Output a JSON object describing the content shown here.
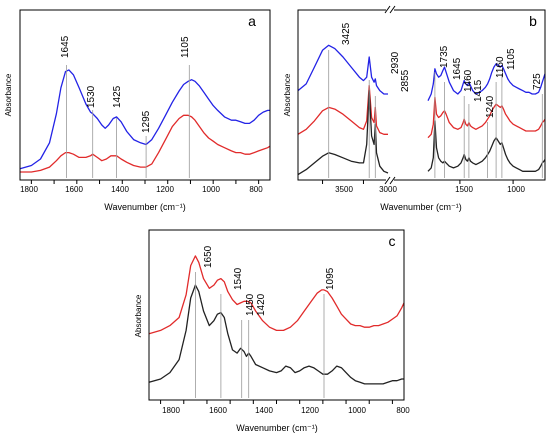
{
  "colors": {
    "blue": "#2323e6",
    "red": "#e12b2b",
    "black": "#222222",
    "peak_line": "#9a9a9a"
  },
  "chart_data": [
    {
      "panel": "a",
      "type": "line",
      "xlabel": "Wavenumber (cm⁻¹)",
      "ylabel": "Absorbance",
      "xlim": [
        1850,
        750
      ],
      "x_reversed": true,
      "x_ticks": [
        "1800",
        "1600",
        "1400",
        "1200",
        "1000",
        "800"
      ],
      "peak_labels": [
        "1645",
        "1530",
        "1425",
        "1295",
        "1105"
      ],
      "series": [
        {
          "color": "blue",
          "x": [
            1850,
            1800,
            1760,
            1720,
            1690,
            1670,
            1650,
            1635,
            1615,
            1590,
            1560,
            1540,
            1530,
            1510,
            1490,
            1475,
            1460,
            1440,
            1425,
            1405,
            1380,
            1350,
            1320,
            1295,
            1270,
            1240,
            1210,
            1180,
            1150,
            1130,
            1110,
            1095,
            1080,
            1060,
            1040,
            1020,
            1000,
            980,
            950,
            920,
            900,
            880,
            860,
            840,
            820,
            800,
            780,
            760,
            750
          ],
          "y": [
            0.02,
            0.04,
            0.08,
            0.18,
            0.36,
            0.52,
            0.62,
            0.63,
            0.6,
            0.52,
            0.42,
            0.37,
            0.36,
            0.33,
            0.29,
            0.27,
            0.29,
            0.33,
            0.34,
            0.31,
            0.25,
            0.2,
            0.18,
            0.17,
            0.2,
            0.27,
            0.35,
            0.43,
            0.5,
            0.54,
            0.56,
            0.57,
            0.56,
            0.53,
            0.49,
            0.45,
            0.41,
            0.38,
            0.34,
            0.32,
            0.32,
            0.31,
            0.3,
            0.3,
            0.32,
            0.35,
            0.37,
            0.38,
            0.38
          ]
        },
        {
          "color": "red",
          "x": [
            1850,
            1800,
            1760,
            1720,
            1690,
            1670,
            1650,
            1635,
            1615,
            1590,
            1560,
            1540,
            1530,
            1510,
            1490,
            1470,
            1450,
            1425,
            1405,
            1380,
            1350,
            1320,
            1295,
            1270,
            1240,
            1210,
            1180,
            1150,
            1130,
            1110,
            1095,
            1080,
            1060,
            1040,
            1020,
            1000,
            980,
            950,
            920,
            900,
            880,
            860,
            840,
            820,
            800,
            780,
            760,
            750
          ],
          "y": [
            0.0,
            0.0,
            0.01,
            0.03,
            0.07,
            0.1,
            0.12,
            0.12,
            0.11,
            0.09,
            0.09,
            0.1,
            0.11,
            0.09,
            0.07,
            0.08,
            0.1,
            0.1,
            0.08,
            0.06,
            0.04,
            0.03,
            0.03,
            0.05,
            0.12,
            0.2,
            0.28,
            0.33,
            0.35,
            0.35,
            0.34,
            0.32,
            0.28,
            0.24,
            0.21,
            0.19,
            0.17,
            0.15,
            0.13,
            0.12,
            0.12,
            0.11,
            0.11,
            0.12,
            0.13,
            0.14,
            0.15,
            0.16
          ]
        }
      ]
    },
    {
      "panel": "b",
      "type": "line",
      "xlabel": "Wavenumber (cm⁻¹)",
      "ylabel": "Absorbance",
      "broken_axis": true,
      "xlim_left": [
        3800,
        2700
      ],
      "xlim_right": [
        1800,
        700
      ],
      "x_reversed": true,
      "x_ticks": [
        "3500",
        "3000",
        "1500",
        "1000"
      ],
      "peak_labels": [
        "3425",
        "2930",
        "2855",
        "1735",
        "1645",
        "1460",
        "1415",
        "1240",
        "1160",
        "1105",
        "725"
      ],
      "series": [
        {
          "color": "blue",
          "left": {
            "x": [
              3800,
              3700,
              3600,
              3500,
              3425,
              3350,
              3250,
              3150,
              3050,
              3000,
              2960,
              2930,
              2900,
              2870,
              2855,
              2840,
              2800,
              2750,
              2700
            ],
            "y": [
              0.52,
              0.56,
              0.66,
              0.76,
              0.79,
              0.77,
              0.72,
              0.66,
              0.6,
              0.58,
              0.6,
              0.72,
              0.6,
              0.57,
              0.59,
              0.55,
              0.52,
              0.5,
              0.5
            ]
          },
          "right": {
            "x": [
              1800,
              1770,
              1750,
              1735,
              1720,
              1700,
              1680,
              1660,
              1645,
              1630,
              1600,
              1560,
              1520,
              1490,
              1470,
              1460,
              1445,
              1430,
              1415,
              1400,
              1380,
              1350,
              1320,
              1290,
              1260,
              1240,
              1220,
              1200,
              1180,
              1160,
              1140,
              1120,
              1105,
              1090,
              1070,
              1050,
              1030,
              1000,
              970,
              940,
              910,
              880,
              850,
              820,
              790,
              760,
              740,
              725,
              710,
              700
            ],
            "y": [
              0.46,
              0.5,
              0.56,
              0.65,
              0.62,
              0.6,
              0.61,
              0.64,
              0.66,
              0.63,
              0.57,
              0.52,
              0.5,
              0.52,
              0.56,
              0.58,
              0.56,
              0.55,
              0.57,
              0.55,
              0.52,
              0.5,
              0.51,
              0.52,
              0.54,
              0.56,
              0.59,
              0.63,
              0.66,
              0.68,
              0.67,
              0.66,
              0.67,
              0.65,
              0.62,
              0.59,
              0.57,
              0.55,
              0.54,
              0.53,
              0.52,
              0.51,
              0.51,
              0.5,
              0.5,
              0.51,
              0.54,
              0.57,
              0.6,
              0.62
            ]
          }
        },
        {
          "color": "red",
          "left": {
            "x": [
              3800,
              3700,
              3600,
              3500,
              3425,
              3350,
              3250,
              3150,
              3050,
              3000,
              2960,
              2930,
              2900,
              2870,
              2855,
              2840,
              2800,
              2750,
              2700
            ],
            "y": [
              0.26,
              0.29,
              0.34,
              0.4,
              0.42,
              0.41,
              0.38,
              0.34,
              0.3,
              0.29,
              0.34,
              0.55,
              0.36,
              0.33,
              0.42,
              0.31,
              0.27,
              0.26,
              0.26
            ]
          },
          "right": {
            "x": [
              1800,
              1770,
              1750,
              1735,
              1720,
              1700,
              1680,
              1660,
              1645,
              1630,
              1600,
              1560,
              1520,
              1490,
              1470,
              1460,
              1445,
              1430,
              1415,
              1400,
              1380,
              1350,
              1320,
              1290,
              1260,
              1240,
              1220,
              1200,
              1180,
              1160,
              1140,
              1120,
              1105,
              1090,
              1070,
              1050,
              1030,
              1000,
              970,
              940,
              910,
              880,
              850,
              820,
              790,
              760,
              740,
              725,
              710,
              700
            ],
            "y": [
              0.24,
              0.26,
              0.32,
              0.48,
              0.38,
              0.36,
              0.37,
              0.39,
              0.4,
              0.38,
              0.33,
              0.3,
              0.29,
              0.3,
              0.33,
              0.35,
              0.32,
              0.31,
              0.33,
              0.31,
              0.3,
              0.29,
              0.3,
              0.31,
              0.33,
              0.35,
              0.37,
              0.4,
              0.42,
              0.44,
              0.43,
              0.42,
              0.43,
              0.41,
              0.38,
              0.36,
              0.34,
              0.32,
              0.31,
              0.3,
              0.29,
              0.28,
              0.28,
              0.28,
              0.28,
              0.29,
              0.31,
              0.33,
              0.34,
              0.35
            ]
          }
        },
        {
          "color": "black",
          "left": {
            "x": [
              3800,
              3700,
              3600,
              3500,
              3425,
              3350,
              3250,
              3150,
              3050,
              3000,
              2960,
              2930,
              2900,
              2870,
              2855,
              2840,
              2800,
              2750,
              2700
            ],
            "y": [
              0.02,
              0.05,
              0.09,
              0.13,
              0.15,
              0.14,
              0.12,
              0.1,
              0.09,
              0.09,
              0.2,
              0.52,
              0.25,
              0.2,
              0.32,
              0.15,
              0.07,
              0.04,
              0.03
            ]
          },
          "right": {
            "x": [
              1800,
              1770,
              1750,
              1735,
              1720,
              1700,
              1680,
              1660,
              1645,
              1630,
              1600,
              1560,
              1520,
              1490,
              1470,
              1460,
              1445,
              1430,
              1415,
              1400,
              1380,
              1350,
              1320,
              1290,
              1260,
              1240,
              1220,
              1200,
              1180,
              1160,
              1140,
              1120,
              1105,
              1090,
              1070,
              1050,
              1030,
              1000,
              970,
              940,
              910,
              880,
              850,
              820,
              790,
              760,
              740,
              725,
              710,
              700
            ],
            "y": [
              0.04,
              0.06,
              0.12,
              0.34,
              0.18,
              0.12,
              0.1,
              0.09,
              0.1,
              0.09,
              0.07,
              0.06,
              0.07,
              0.09,
              0.12,
              0.14,
              0.11,
              0.1,
              0.12,
              0.1,
              0.09,
              0.08,
              0.09,
              0.1,
              0.12,
              0.14,
              0.16,
              0.19,
              0.22,
              0.24,
              0.22,
              0.2,
              0.21,
              0.18,
              0.14,
              0.11,
              0.09,
              0.07,
              0.06,
              0.05,
              0.04,
              0.04,
              0.04,
              0.04,
              0.04,
              0.05,
              0.07,
              0.09,
              0.1,
              0.11
            ]
          }
        }
      ]
    },
    {
      "panel": "c",
      "type": "line",
      "xlabel": "Wavenumber (cm⁻¹)",
      "ylabel": "Absorbance",
      "xlim": [
        1850,
        750
      ],
      "x_reversed": true,
      "x_ticks": [
        "1800",
        "1600",
        "1400",
        "1200",
        "1000",
        "800"
      ],
      "peak_labels": [
        "1650",
        "1540",
        "1450",
        "1420",
        "1095"
      ],
      "series": [
        {
          "color": "red",
          "x": [
            1850,
            1800,
            1760,
            1720,
            1690,
            1670,
            1650,
            1635,
            1615,
            1590,
            1570,
            1555,
            1540,
            1525,
            1510,
            1490,
            1470,
            1455,
            1440,
            1425,
            1410,
            1390,
            1360,
            1330,
            1300,
            1270,
            1240,
            1210,
            1180,
            1150,
            1125,
            1105,
            1095,
            1080,
            1060,
            1040,
            1020,
            1000,
            980,
            960,
            940,
            920,
            900,
            880,
            860,
            840,
            820,
            800,
            780,
            760,
            750
          ],
          "y": [
            0.36,
            0.38,
            0.41,
            0.46,
            0.6,
            0.78,
            0.84,
            0.8,
            0.7,
            0.64,
            0.66,
            0.69,
            0.7,
            0.68,
            0.62,
            0.57,
            0.54,
            0.55,
            0.56,
            0.56,
            0.55,
            0.5,
            0.44,
            0.4,
            0.38,
            0.38,
            0.4,
            0.44,
            0.5,
            0.56,
            0.61,
            0.63,
            0.63,
            0.62,
            0.58,
            0.53,
            0.48,
            0.45,
            0.42,
            0.41,
            0.41,
            0.4,
            0.4,
            0.41,
            0.41,
            0.42,
            0.43,
            0.45,
            0.47,
            0.52,
            0.55
          ]
        },
        {
          "color": "black",
          "x": [
            1850,
            1800,
            1760,
            1720,
            1690,
            1670,
            1650,
            1635,
            1615,
            1590,
            1570,
            1555,
            1540,
            1525,
            1510,
            1490,
            1470,
            1455,
            1440,
            1430,
            1420,
            1410,
            1390,
            1360,
            1330,
            1300,
            1280,
            1260,
            1240,
            1220,
            1200,
            1180,
            1160,
            1140,
            1120,
            1100,
            1080,
            1060,
            1040,
            1020,
            1000,
            980,
            960,
            940,
            920,
            900,
            880,
            860,
            840,
            820,
            800,
            780,
            760,
            750
          ],
          "y": [
            0.06,
            0.08,
            0.12,
            0.2,
            0.38,
            0.58,
            0.66,
            0.62,
            0.5,
            0.41,
            0.44,
            0.48,
            0.49,
            0.46,
            0.36,
            0.26,
            0.24,
            0.27,
            0.25,
            0.22,
            0.24,
            0.22,
            0.17,
            0.15,
            0.13,
            0.12,
            0.13,
            0.16,
            0.15,
            0.12,
            0.13,
            0.15,
            0.16,
            0.15,
            0.13,
            0.11,
            0.11,
            0.13,
            0.16,
            0.15,
            0.12,
            0.09,
            0.07,
            0.06,
            0.05,
            0.05,
            0.05,
            0.05,
            0.05,
            0.06,
            0.07,
            0.07,
            0.08,
            0.08
          ]
        }
      ]
    }
  ]
}
